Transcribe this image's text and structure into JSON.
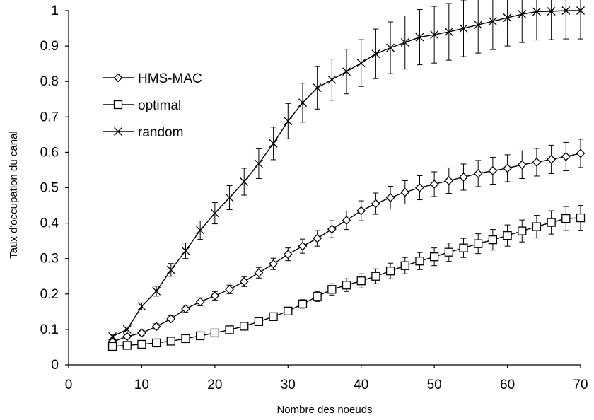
{
  "chart_data": {
    "type": "line",
    "title": "",
    "xlabel": "Nombre des noeuds",
    "ylabel": "Taux d'occupation du canal",
    "xlim": [
      0,
      70
    ],
    "ylim": [
      0,
      1
    ],
    "xticks": [
      "0",
      "10",
      "20",
      "30",
      "40",
      "50",
      "60",
      "70"
    ],
    "yticks": [
      "0",
      "0.1",
      "0.2",
      "0.3",
      "0.4",
      "0.5",
      "0.6",
      "0.7",
      "0.8",
      "0.9",
      "1"
    ],
    "grid": false,
    "legend_position": "left",
    "x": [
      6,
      8,
      10,
      12,
      14,
      16,
      18,
      20,
      22,
      24,
      26,
      28,
      30,
      32,
      34,
      36,
      38,
      40,
      42,
      44,
      46,
      48,
      50,
      52,
      54,
      56,
      58,
      60,
      62,
      64,
      66,
      68,
      70
    ],
    "series": [
      {
        "name": "HMS-MAC",
        "marker": "diamond",
        "values": [
          0.065,
          0.08,
          0.09,
          0.108,
          0.13,
          0.158,
          0.178,
          0.195,
          0.213,
          0.235,
          0.26,
          0.285,
          0.312,
          0.335,
          0.357,
          0.383,
          0.408,
          0.435,
          0.455,
          0.472,
          0.487,
          0.5,
          0.51,
          0.52,
          0.53,
          0.54,
          0.548,
          0.555,
          0.565,
          0.572,
          0.58,
          0.588,
          0.597
        ],
        "errors": [
          0.005,
          0.006,
          0.007,
          0.008,
          0.009,
          0.01,
          0.011,
          0.012,
          0.012,
          0.014,
          0.015,
          0.016,
          0.018,
          0.02,
          0.022,
          0.024,
          0.026,
          0.028,
          0.03,
          0.032,
          0.033,
          0.034,
          0.035,
          0.036,
          0.037,
          0.037,
          0.038,
          0.038,
          0.039,
          0.039,
          0.04,
          0.04,
          0.04
        ]
      },
      {
        "name": "optimal",
        "marker": "square",
        "values": [
          0.052,
          0.055,
          0.058,
          0.062,
          0.067,
          0.074,
          0.082,
          0.09,
          0.099,
          0.109,
          0.122,
          0.136,
          0.152,
          0.172,
          0.193,
          0.213,
          0.225,
          0.237,
          0.25,
          0.265,
          0.28,
          0.293,
          0.305,
          0.318,
          0.33,
          0.342,
          0.353,
          0.365,
          0.378,
          0.39,
          0.402,
          0.413,
          0.415
        ],
        "errors": [
          0.005,
          0.005,
          0.005,
          0.005,
          0.006,
          0.006,
          0.006,
          0.007,
          0.007,
          0.008,
          0.008,
          0.009,
          0.01,
          0.012,
          0.014,
          0.016,
          0.018,
          0.02,
          0.021,
          0.022,
          0.023,
          0.024,
          0.025,
          0.026,
          0.027,
          0.028,
          0.029,
          0.03,
          0.031,
          0.032,
          0.033,
          0.034,
          0.035
        ]
      },
      {
        "name": "random",
        "marker": "x",
        "values": [
          0.08,
          0.1,
          0.165,
          0.208,
          0.268,
          0.322,
          0.38,
          0.428,
          0.472,
          0.517,
          0.568,
          0.625,
          0.688,
          0.74,
          0.782,
          0.805,
          0.828,
          0.852,
          0.878,
          0.895,
          0.91,
          0.925,
          0.932,
          0.94,
          0.95,
          0.96,
          0.97,
          0.98,
          0.99,
          0.997,
          0.998,
          1.0,
          1.0
        ],
        "errors": [
          0.006,
          0.007,
          0.01,
          0.014,
          0.018,
          0.022,
          0.026,
          0.03,
          0.034,
          0.038,
          0.042,
          0.046,
          0.05,
          0.055,
          0.06,
          0.058,
          0.063,
          0.066,
          0.07,
          0.073,
          0.075,
          0.078,
          0.08,
          0.08,
          0.08,
          0.08,
          0.08,
          0.08,
          0.08,
          0.08,
          0.08,
          0.08,
          0.08
        ]
      }
    ]
  }
}
